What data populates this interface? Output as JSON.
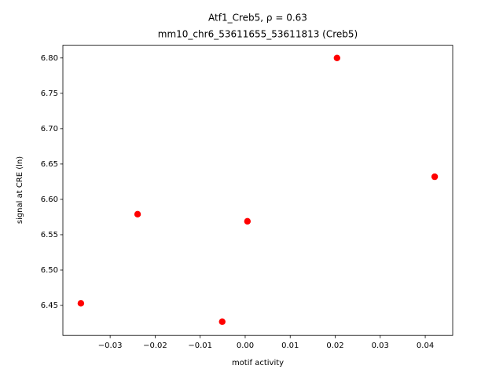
{
  "chart_data": {
    "type": "scatter",
    "title": "Atf1_Creb5, ρ = 0.63",
    "subtitle": "mm10_chr6_53611655_53611813 (Creb5)",
    "x_label": "motif activity",
    "y_label": "signal at CRE (ln)",
    "color": "#ff0000",
    "x": [
      -0.0365,
      -0.0239,
      -0.0051,
      0.0005,
      0.0204,
      0.0421
    ],
    "values": [
      6.453,
      6.579,
      6.427,
      6.569,
      6.8,
      6.632
    ],
    "xlim": [
      -0.0405,
      0.0461
    ],
    "ylim": [
      6.4076,
      6.818
    ],
    "xticks": [
      {
        "value": -0.03,
        "label": "−0.03"
      },
      {
        "value": -0.02,
        "label": "−0.02"
      },
      {
        "value": -0.01,
        "label": "−0.01"
      },
      {
        "value": 0,
        "label": "0.00"
      },
      0.01,
      0.02,
      0.03,
      0.04
    ],
    "yticks": [
      6.45,
      {
        "value": 6.5,
        "label": "6.50"
      },
      6.55,
      {
        "value": 6.6,
        "label": "6.60"
      },
      6.65,
      {
        "value": 6.7,
        "label": "6.70"
      },
      6.75,
      {
        "value": 6.8,
        "label": "6.80"
      }
    ]
  }
}
